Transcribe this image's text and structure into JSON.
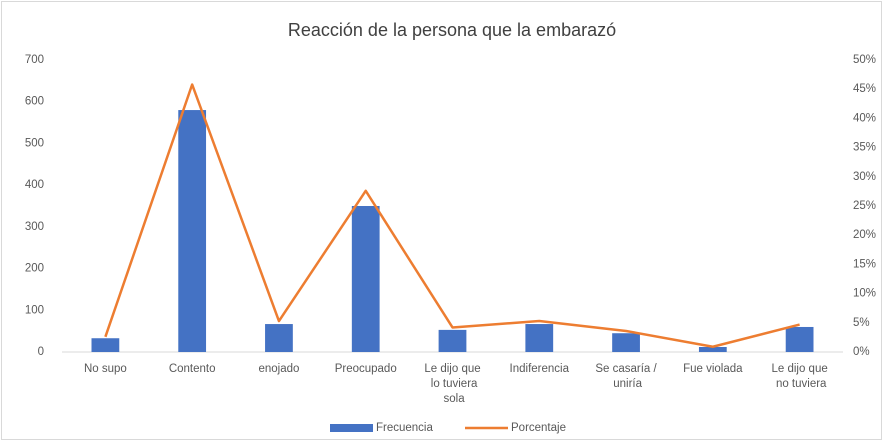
{
  "chart_data": {
    "type": "bar",
    "title": "Reacción de la persona que la embarazó",
    "categories": [
      "No supo",
      "Contento",
      "enojado",
      "Preocupado",
      "Le dijo que lo tuviera sola",
      "Indiferencia",
      "Se casaría / uniría",
      "Fue violada",
      "Le dijo que no tuviera"
    ],
    "series": [
      {
        "name": "Frecuencia",
        "type": "bar",
        "color": "#4472c4",
        "values": [
          33,
          580,
          67,
          350,
          53,
          67,
          45,
          12,
          60
        ]
      },
      {
        "name": "Porcentaje",
        "type": "line",
        "axis": "y2",
        "color": "#ed7d31",
        "values": [
          2.6,
          45.8,
          5.3,
          27.6,
          4.2,
          5.3,
          3.6,
          0.9,
          4.7
        ]
      }
    ],
    "ylim": [
      0,
      700
    ],
    "yticks": [
      0,
      100,
      200,
      300,
      400,
      500,
      600,
      700
    ],
    "y2lim": [
      0,
      50
    ],
    "y2ticks": [
      {
        "value": 0,
        "label": "0%"
      },
      {
        "value": 5,
        "label": "5%"
      },
      {
        "value": 10,
        "label": "10%"
      },
      {
        "value": 15,
        "label": "15%"
      },
      {
        "value": 20,
        "label": "20%"
      },
      {
        "value": 25,
        "label": "25%"
      },
      {
        "value": 30,
        "label": "30%"
      },
      {
        "value": 35,
        "label": "35%"
      },
      {
        "value": 40,
        "label": "40%"
      },
      {
        "value": 45,
        "label": "45%"
      },
      {
        "value": 50,
        "label": "50%"
      }
    ],
    "grid": false,
    "legend": "bottom"
  }
}
